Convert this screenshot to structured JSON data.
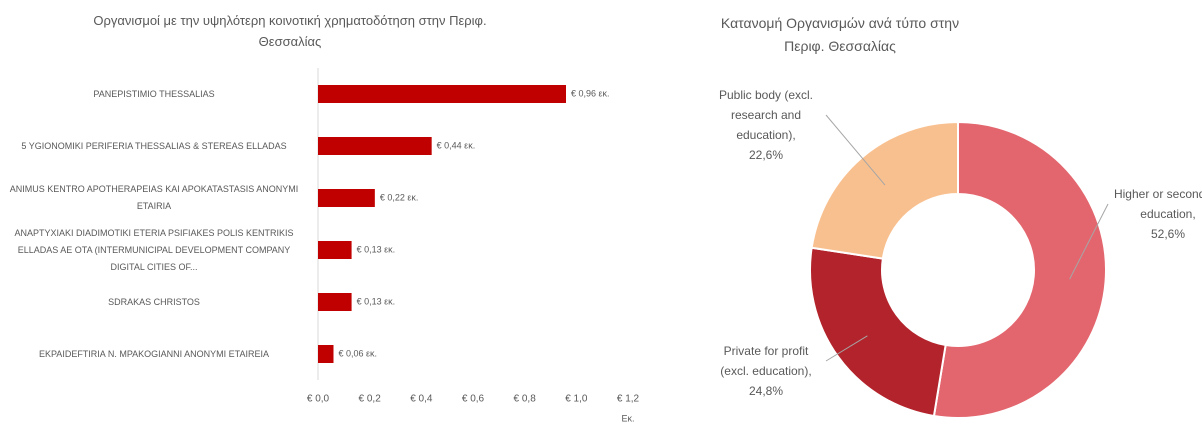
{
  "chart_data": [
    {
      "type": "barh",
      "title": "Οργανισμοί με την υψηλότερη κοινοτική χρηματοδότηση στην Περιφ. Θεσσαλίας",
      "categories": [
        "PANEPISTIMIO THESSALIAS",
        "5 YGIONOMIKI PERIFERIA THESSALIAS & STEREAS ELLADAS",
        "ANIMUS KENTRO APOTHERAPEIAS KAI APOKATASTASIS ANONYMI ETAIRIA",
        "ΑΝΑΡΤΥΧΙΑΚΙ DIADIMOTIKI ETERIA PSIFIAKES POLIS KENTRIKIS ELLADAS AE OTA (INTERMUNICIPAL DEVELOPMENT COMPANY DIGITAL CITIES OF...",
        "SDRAKAS CHRISTOS",
        "EKPAIDEFTIRIA N. MPAKOGIANNI ANONYMI ETAIREIA"
      ],
      "values": [
        0.96,
        0.44,
        0.22,
        0.13,
        0.13,
        0.06
      ],
      "value_labels": [
        "€ 0,96 εκ.",
        "€ 0,44 εκ.",
        "€ 0,22 εκ.",
        "€ 0,13 εκ.",
        "€ 0,13 εκ.",
        "€ 0,06 εκ."
      ],
      "color": "#c00000",
      "xlim": [
        0,
        1.2
      ],
      "xticks": [
        {
          "value": 0,
          "label": "€ 0,0"
        },
        {
          "value": 0.2,
          "label": "€ 0,2"
        },
        {
          "value": 0.4,
          "label": "€ 0,4"
        },
        {
          "value": 0.6,
          "label": "€ 0,6"
        },
        {
          "value": 0.8,
          "label": "€ 0,8"
        },
        {
          "value": 1.0,
          "label": "€ 1,0"
        },
        {
          "value": 1.2,
          "label": "€ 1,2"
        }
      ],
      "x_label": "Εκ."
    },
    {
      "type": "donut",
      "title": "Κατανομή Οργανισμών ανά τύπο στην Περιφ. Θεσσαλίας",
      "categories": [
        "Higher or secondary education,",
        "Private for profit (excl. education),",
        "Public body (excl. research and education),"
      ],
      "values": [
        52.6,
        24.8,
        22.6
      ],
      "value_labels": [
        "52,6%",
        "24,8%",
        "22,6%"
      ],
      "colors": [
        "#e3666e",
        "#b3232b",
        "#f9c08f"
      ]
    }
  ]
}
